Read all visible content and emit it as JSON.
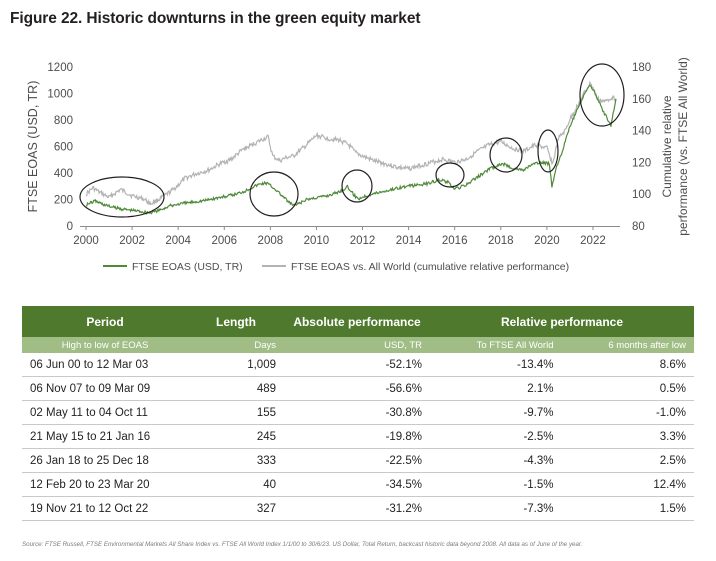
{
  "title": "Figure 22. Historic downturns in the green equity market",
  "chart_data": {
    "type": "line",
    "y_left_label": "FTSE EOAS (USD, TR)",
    "y_right_label_line1": "Cumulative relative",
    "y_right_label_line2": "performance (vs. FTSE All World)",
    "y_left_ticks": [
      "0",
      "200",
      "400",
      "600",
      "800",
      "1000",
      "1200"
    ],
    "y_right_ticks": [
      "80",
      "100",
      "120",
      "140",
      "160",
      "180"
    ],
    "x_ticks": [
      "2000",
      "2002",
      "2004",
      "2006",
      "2008",
      "2010",
      "2012",
      "2014",
      "2016",
      "2018",
      "2020",
      "2022"
    ],
    "ylim_left": [
      0,
      1200
    ],
    "ylim_right": [
      80,
      180
    ],
    "xlim": [
      2000,
      2023.0
    ],
    "grid": false,
    "legend_position": "bottom",
    "series": [
      {
        "name": "FTSE EOAS (USD, TR)",
        "axis": "left",
        "color": "#4f8a3b",
        "x": [
          2000.0,
          2000.2,
          2000.4,
          2000.8,
          2001.2,
          2001.7,
          2002.2,
          2002.6,
          2002.8,
          2003.2,
          2003.6,
          2004.0,
          2004.6,
          2005.2,
          2005.8,
          2006.4,
          2006.9,
          2007.3,
          2007.6,
          2007.85,
          2008.2,
          2008.5,
          2008.8,
          2009.0,
          2009.2,
          2009.6,
          2010.0,
          2010.5,
          2011.0,
          2011.35,
          2011.6,
          2011.8,
          2012.1,
          2012.5,
          2013.0,
          2013.6,
          2014.2,
          2014.8,
          2015.37,
          2015.7,
          2015.9,
          2016.05,
          2016.5,
          2017.0,
          2017.5,
          2018.07,
          2018.5,
          2018.98,
          2019.3,
          2019.8,
          2020.11,
          2020.22,
          2020.4,
          2020.7,
          2021.0,
          2021.3,
          2021.6,
          2021.88,
          2022.2,
          2022.5,
          2022.78,
          2023.0
        ],
        "values": [
          160,
          175,
          190,
          160,
          140,
          125,
          115,
          105,
          100,
          120,
          150,
          165,
          180,
          195,
          215,
          235,
          265,
          300,
          320,
          325,
          280,
          230,
          180,
          155,
          165,
          200,
          215,
          230,
          260,
          295,
          240,
          205,
          225,
          245,
          265,
          290,
          305,
          320,
          350,
          330,
          290,
          280,
          310,
          370,
          430,
          470,
          440,
          420,
          460,
          480,
          470,
          300,
          440,
          580,
          750,
          870,
          980,
          1070,
          960,
          850,
          760,
          960
        ]
      },
      {
        "name": "FTSE EOAS vs. All World (cumulative relative performance)",
        "axis": "right",
        "color": "#b3b3b3",
        "x": [
          2000.0,
          2000.3,
          2000.6,
          2001.0,
          2001.5,
          2002.0,
          2002.5,
          2002.8,
          2003.2,
          2003.8,
          2004.3,
          2004.8,
          2005.3,
          2005.8,
          2006.3,
          2006.8,
          2007.2,
          2007.6,
          2007.9,
          2008.1,
          2008.4,
          2008.7,
          2009.0,
          2009.5,
          2010.0,
          2010.5,
          2011.0,
          2011.4,
          2011.7,
          2012.0,
          2012.5,
          2013.0,
          2013.5,
          2014.0,
          2014.5,
          2015.0,
          2015.5,
          2016.0,
          2016.5,
          2017.0,
          2017.5,
          2018.0,
          2018.5,
          2019.0,
          2019.5,
          2020.0,
          2020.25,
          2020.5,
          2020.8,
          2021.0,
          2021.3,
          2021.6,
          2021.9,
          2022.2,
          2022.5,
          2022.8,
          2023.0
        ],
        "values": [
          100,
          104,
          101,
          98,
          103,
          99,
          97,
          94,
          97,
          103,
          110,
          113,
          115,
          119,
          122,
          128,
          131,
          134,
          136,
          124,
          121,
          123,
          124,
          130,
          137,
          135,
          134,
          131,
          126,
          124,
          121,
          119,
          117,
          116,
          118,
          120,
          122,
          120,
          122,
          127,
          131,
          133,
          129,
          127,
          131,
          129,
          119,
          135,
          140,
          147,
          155,
          163,
          170,
          160,
          158,
          161,
          160
        ]
      }
    ]
  },
  "legend": [
    {
      "label": "FTSE EOAS (USD, TR)",
      "color": "#4f8a3b"
    },
    {
      "label": "FTSE EOAS vs. All World (cumulative relative performance)",
      "color": "#b3b3b3"
    }
  ],
  "table": {
    "headers": [
      "Period",
      "Length",
      "Absolute performance",
      "Relative performance"
    ],
    "subheaders": [
      "High to low of EOAS",
      "Days",
      "USD, TR",
      "To FTSE All World",
      "6 months after low"
    ],
    "rows": [
      [
        "06 Jun 00 to 12 Mar 03",
        "1,009",
        "-52.1%",
        "-13.4%",
        "8.6%"
      ],
      [
        "06 Nov 07 to 09 Mar 09",
        "489",
        "-56.6%",
        "2.1%",
        "0.5%"
      ],
      [
        "02 May 11 to 04 Oct 11",
        "155",
        "-30.8%",
        "-9.7%",
        "-1.0%"
      ],
      [
        "21 May 15 to 21 Jan 16",
        "245",
        "-19.8%",
        "-2.5%",
        "3.3%"
      ],
      [
        "26 Jan 18 to 25 Dec 18",
        "333",
        "-22.5%",
        "-4.3%",
        "2.5%"
      ],
      [
        "12 Feb 20 to 23 Mar 20",
        "40",
        "-34.5%",
        "-1.5%",
        "12.4%"
      ],
      [
        "19 Nov 21 to 12 Oct 22",
        "327",
        "-31.2%",
        "-7.3%",
        "1.5%"
      ]
    ]
  },
  "source": "Source: FTSE Russell, FTSE Environmental Markets All Share Index vs. FTSE All World Index 1/1/00 to 30/6/23. US Dollar, Total Return, backcast historic data beyond 2008. All data as of June of the year."
}
